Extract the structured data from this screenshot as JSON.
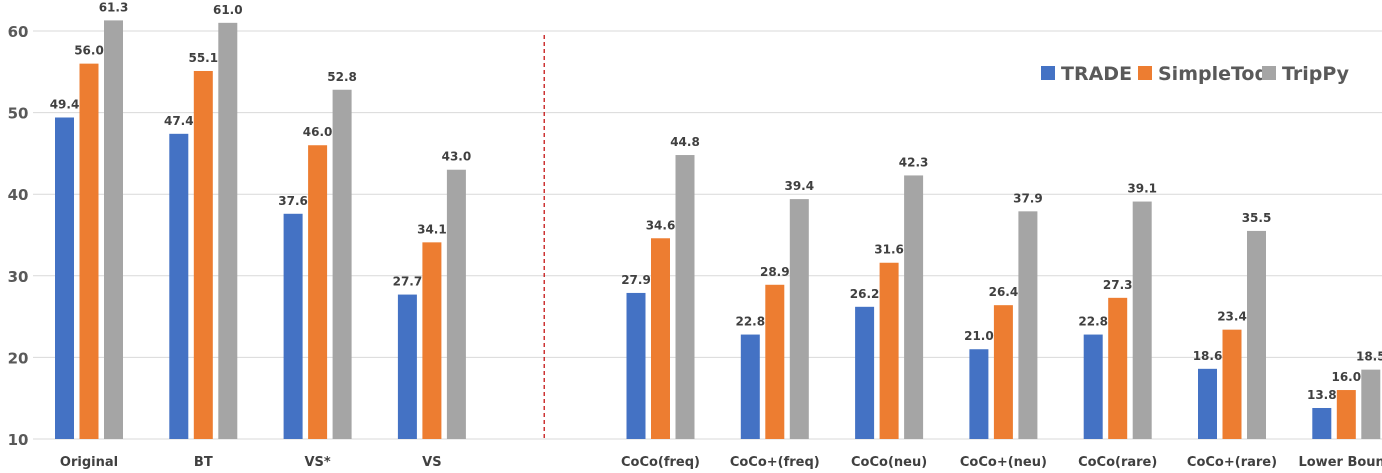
{
  "chart_data": {
    "type": "bar",
    "title": "",
    "xlabel": "",
    "ylabel": "",
    "ylim": [
      10,
      60
    ],
    "yticks": [
      10,
      20,
      30,
      40,
      50,
      60
    ],
    "grid": true,
    "legend_position": "top-right",
    "divider": {
      "after_category": "VS",
      "style": "red dashed vertical line",
      "color": "#C00000"
    },
    "categories": [
      "Original",
      "BT",
      "VS*",
      "VS",
      "CoCo(freq)",
      "CoCo+(freq)",
      "CoCo(neu)",
      "CoCo+(neu)",
      "CoCo(rare)",
      "CoCo+(rare)",
      "Lower Bound"
    ],
    "series": [
      {
        "name": "TRADE",
        "color": "#4472C4",
        "values": [
          49.4,
          47.4,
          37.6,
          27.7,
          27.9,
          22.8,
          26.2,
          21.0,
          22.8,
          18.6,
          13.8
        ]
      },
      {
        "name": "SimpleTod",
        "color": "#ED7D31",
        "values": [
          56.0,
          55.1,
          46.0,
          34.1,
          34.6,
          28.9,
          31.6,
          26.4,
          27.3,
          23.4,
          16.0
        ]
      },
      {
        "name": "TripPy",
        "color": "#A5A5A5",
        "values": [
          61.3,
          61.0,
          52.8,
          43.0,
          44.8,
          39.4,
          42.3,
          37.9,
          39.1,
          35.5,
          18.5
        ]
      }
    ]
  }
}
